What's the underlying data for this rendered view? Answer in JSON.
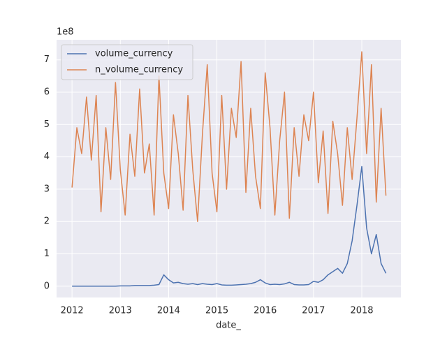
{
  "chart_data": {
    "type": "line",
    "x_label": "date_",
    "y_offset_label": "1e8",
    "x": [
      2012.0,
      2012.1,
      2012.2,
      2012.3,
      2012.4,
      2012.5,
      2012.6,
      2012.7,
      2012.8,
      2012.9,
      2013.0,
      2013.1,
      2013.2,
      2013.3,
      2013.4,
      2013.5,
      2013.6,
      2013.7,
      2013.8,
      2013.9,
      2014.0,
      2014.1,
      2014.2,
      2014.3,
      2014.4,
      2014.5,
      2014.6,
      2014.7,
      2014.8,
      2014.9,
      2015.0,
      2015.1,
      2015.2,
      2015.3,
      2015.4,
      2015.5,
      2015.6,
      2015.7,
      2015.8,
      2015.9,
      2016.0,
      2016.1,
      2016.2,
      2016.3,
      2016.4,
      2016.5,
      2016.6,
      2016.7,
      2016.8,
      2016.9,
      2017.0,
      2017.1,
      2017.2,
      2017.3,
      2017.4,
      2017.5,
      2017.6,
      2017.7,
      2017.8,
      2017.9,
      2018.0,
      2018.1,
      2018.2,
      2018.3,
      2018.4,
      2018.5
    ],
    "series": [
      {
        "name": "volume_currency",
        "color": "#4c72b0",
        "values": [
          0.0,
          0.0,
          0.0,
          0.0,
          0.0,
          0.0,
          0.0,
          0.0,
          0.0,
          0.0,
          0.01,
          0.01,
          0.01,
          0.02,
          0.02,
          0.02,
          0.02,
          0.03,
          0.05,
          0.35,
          0.2,
          0.1,
          0.12,
          0.08,
          0.06,
          0.08,
          0.05,
          0.08,
          0.06,
          0.05,
          0.08,
          0.04,
          0.03,
          0.03,
          0.04,
          0.05,
          0.06,
          0.08,
          0.12,
          0.2,
          0.1,
          0.05,
          0.06,
          0.05,
          0.07,
          0.12,
          0.05,
          0.04,
          0.04,
          0.05,
          0.15,
          0.12,
          0.2,
          0.35,
          0.45,
          0.55,
          0.4,
          0.7,
          1.4,
          2.5,
          3.7,
          1.8,
          1.0,
          1.6,
          0.7,
          0.4
        ]
      },
      {
        "name": "n_volume_currency",
        "color": "#dd8452",
        "values": [
          3.05,
          4.9,
          4.1,
          5.85,
          3.9,
          5.9,
          2.3,
          4.9,
          3.3,
          6.3,
          3.6,
          2.2,
          4.7,
          3.4,
          6.1,
          3.5,
          4.4,
          2.2,
          6.5,
          3.5,
          2.4,
          5.3,
          4.1,
          2.35,
          5.9,
          3.6,
          2.0,
          4.7,
          6.85,
          3.5,
          2.3,
          5.9,
          3.0,
          5.5,
          4.6,
          6.95,
          2.9,
          5.5,
          3.4,
          2.4,
          6.6,
          4.9,
          2.2,
          4.5,
          6.0,
          2.1,
          4.9,
          3.4,
          5.3,
          4.5,
          6.0,
          3.2,
          4.8,
          2.25,
          5.1,
          4.1,
          2.5,
          4.9,
          3.3,
          5.2,
          7.25,
          4.1,
          6.85,
          2.6,
          5.5,
          2.8
        ]
      }
    ],
    "xlim": [
      2011.68,
      2018.81
    ],
    "xticks": [
      2012,
      2013,
      2014,
      2015,
      2016,
      2017,
      2018
    ],
    "ylim": [
      -0.35,
      7.62
    ],
    "yticks": [
      0,
      1,
      2,
      3,
      4,
      5,
      6,
      7
    ],
    "grid": true,
    "legend": "upper left"
  }
}
